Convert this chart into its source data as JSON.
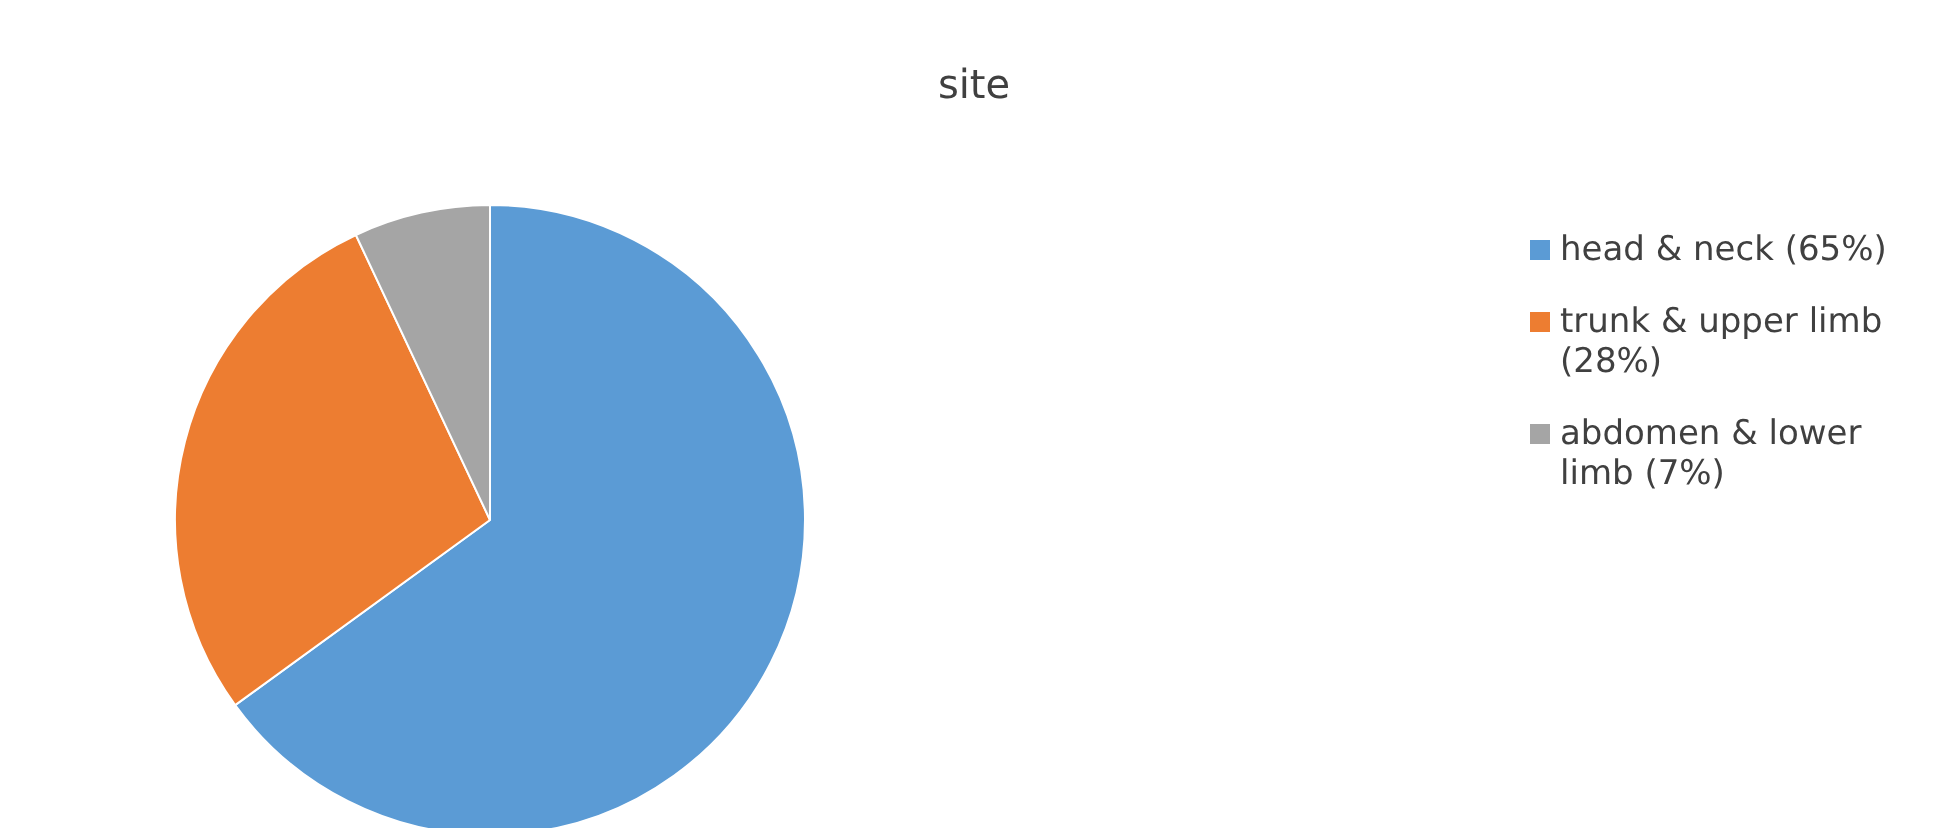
{
  "chart_data": {
    "type": "pie",
    "title": "site",
    "categories": [
      "head & neck (65%)",
      "trunk & upper limb (28%)",
      "abdomen & lower limb (7%)"
    ],
    "values": [
      65,
      28,
      7
    ],
    "colors": [
      "#5b9bd5",
      "#ed7d31",
      "#a5a5a5"
    ],
    "legend": "right"
  }
}
